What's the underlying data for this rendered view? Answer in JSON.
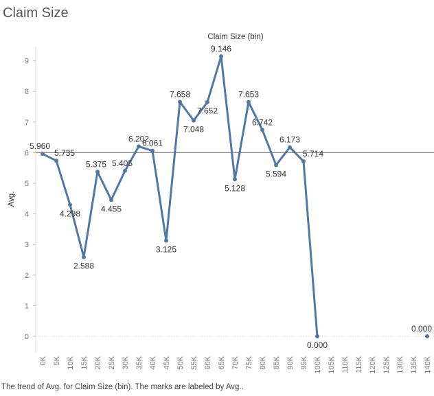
{
  "page": {
    "title": "Claim Size",
    "caption": "The trend of Avg. for Claim Size (bin).  The marks are labeled by Avg.."
  },
  "chart_data": {
    "type": "line",
    "xlabel": "Claim Size (bin)",
    "ylabel": "Avg.",
    "categories": [
      "0K",
      "5K",
      "10K",
      "15K",
      "20K",
      "25K",
      "30K",
      "35K",
      "40K",
      "45K",
      "50K",
      "55K",
      "60K",
      "65K",
      "70K",
      "75K",
      "80K",
      "85K",
      "90K",
      "95K",
      "100K",
      "105K",
      "110K",
      "115K",
      "120K",
      "125K",
      "130K",
      "135K",
      "140K"
    ],
    "series": [
      {
        "values": [
          5.96,
          5.735,
          4.298,
          2.588,
          5.375,
          4.455,
          5.405,
          6.202,
          6.061,
          3.125,
          7.658,
          7.048,
          7.652,
          9.146,
          5.128,
          7.653,
          6.742,
          5.594,
          6.173,
          5.714,
          0.0,
          null,
          null,
          null,
          null,
          null,
          null,
          null,
          0.0
        ],
        "labels": [
          "5.960",
          "5.735",
          "4.298",
          "2.588",
          "5.375",
          "4.455",
          "5.405",
          "6.202",
          "6.061",
          "3.125",
          "7.658",
          "7.048",
          "7.652",
          "9.146",
          "5.128",
          "7.653",
          "6.742",
          "5.594",
          "6.173",
          "5.714",
          "0.000",
          "",
          "",
          "",
          "",
          "",
          "",
          "",
          "0.000"
        ]
      }
    ],
    "reference_line": 6.0,
    "yticks": [
      0,
      1,
      2,
      3,
      4,
      5,
      6,
      7,
      8,
      9
    ],
    "ylim": [
      -0.55,
      9.65
    ],
    "grid": false,
    "color": "#4e79a7",
    "reference_color": "#8c8c8c"
  }
}
